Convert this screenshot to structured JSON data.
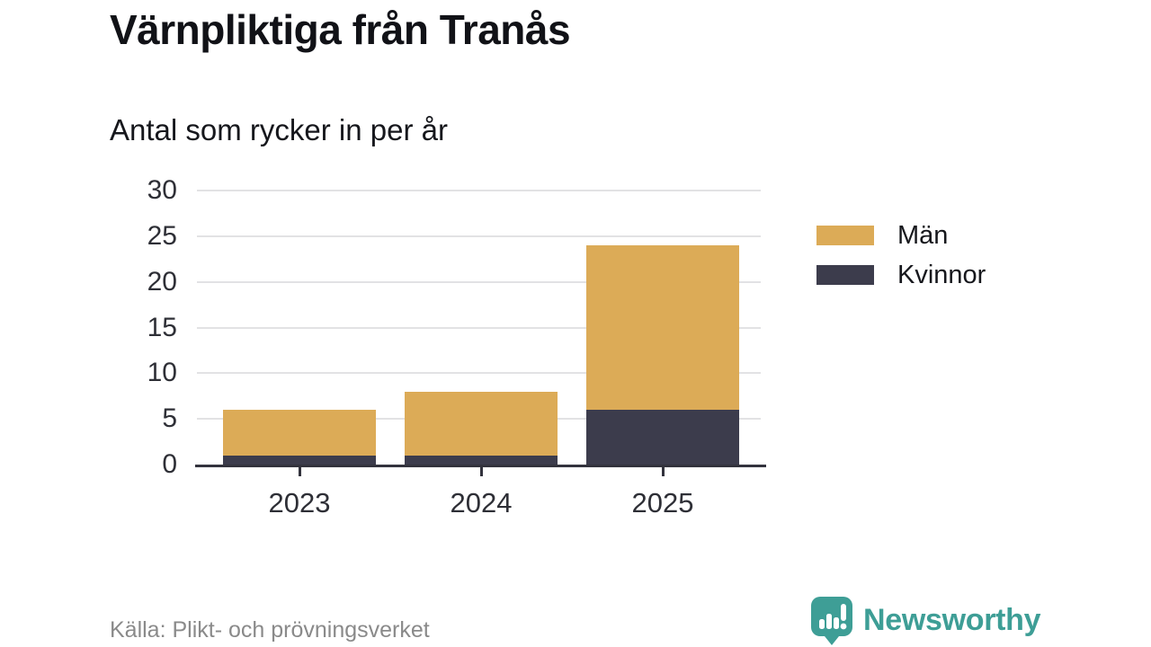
{
  "header": {
    "title": "Värnpliktiga från Tranås",
    "subtitle": "Antal som rycker in per år"
  },
  "footer": {
    "source": "Källa: Plikt- och prövningsverket",
    "brand": "Newsworthy",
    "brand_icon": "newsworthy-speech-bubble-barchart-icon"
  },
  "colors": {
    "men": "#DCAB57",
    "women": "#3C3C4C",
    "brand_teal": "#3E9E96",
    "gridline": "#E2E2E4",
    "axis": "#33333D",
    "tick_text": "#2e2f36",
    "muted_text": "#8a8a8a"
  },
  "chart_data": {
    "type": "bar",
    "stacked": true,
    "title": "Värnpliktiga från Tranås",
    "subtitle": "Antal som rycker in per år",
    "categories": [
      "2023",
      "2024",
      "2025"
    ],
    "series": [
      {
        "name": "Kvinnor",
        "color": "#3C3C4C",
        "values": [
          1,
          1,
          6
        ]
      },
      {
        "name": "Män",
        "color": "#DCAB57",
        "values": [
          5,
          7,
          18
        ]
      }
    ],
    "stack_order_bottom_to_top": [
      "Kvinnor",
      "Män"
    ],
    "totals": [
      6,
      8,
      24
    ],
    "xlabel": "",
    "ylabel": "",
    "ylim": [
      0,
      30
    ],
    "y_ticks": [
      0,
      5,
      10,
      15,
      20,
      25,
      30
    ],
    "grid": true,
    "legend": {
      "position": "right",
      "entries": [
        {
          "label": "Män",
          "color": "#DCAB57"
        },
        {
          "label": "Kvinnor",
          "color": "#3C3C4C"
        }
      ]
    }
  }
}
